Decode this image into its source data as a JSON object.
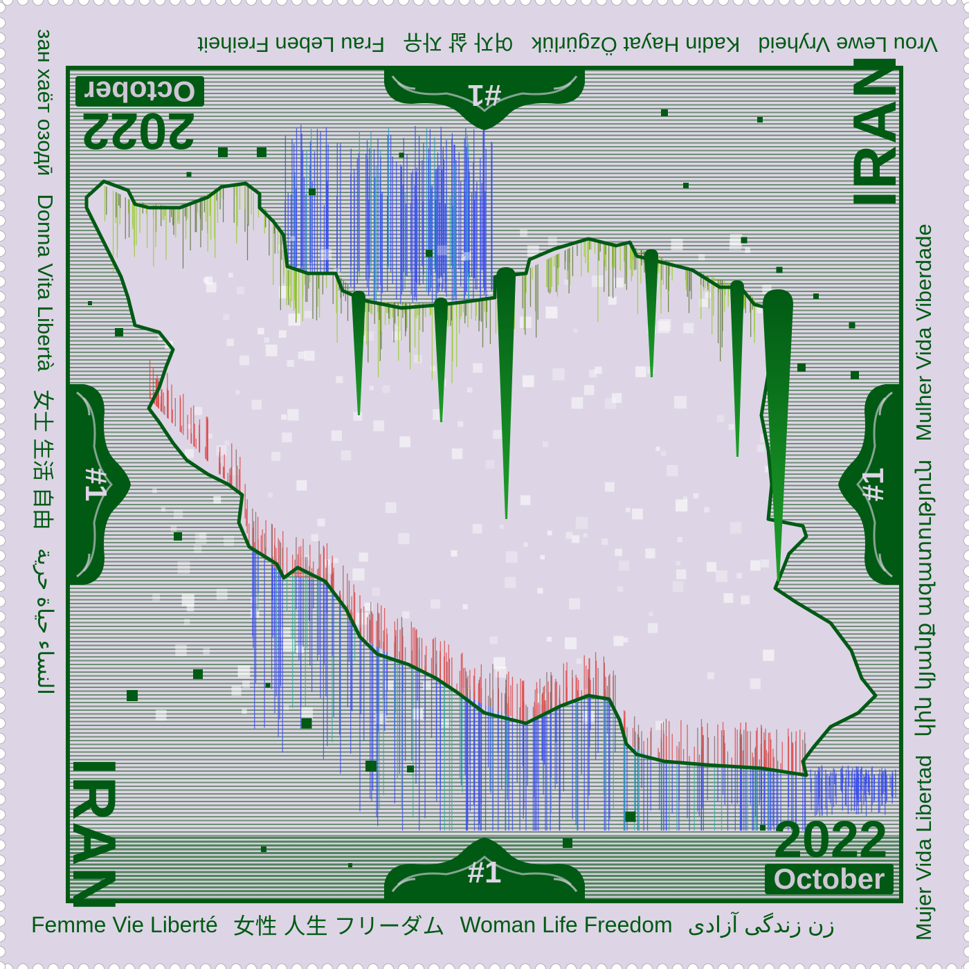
{
  "borders": {
    "top": [
      "Vrou Lewe Vryheid",
      "Kadin Hayat Özgürlük",
      "여자 삶 자유",
      "Frau Leben Freiheit"
    ],
    "right": [
      "Mujer Vida Libertad",
      "կին կյանք ազատություն",
      "Mulher Vida Viberdade"
    ],
    "bottom": [
      "Femme Vie Liberté",
      "女性 人生 フリーダム",
      "Woman Life Freedom",
      "زن زندگی آزادی"
    ],
    "left": [
      "зан хаёт озодӣ",
      "Donna Vita Libertà",
      "女士 生活 自由",
      "النساء حياة حرية"
    ]
  },
  "country": "IRAN",
  "year": "2022",
  "month": "October",
  "number": "#1",
  "colors": {
    "background": "#ddd5e5",
    "primary_green": "#005a14",
    "north_drips": "#9acd32",
    "south_drips": "#e04848",
    "water_drips": "#3a4cf0"
  }
}
